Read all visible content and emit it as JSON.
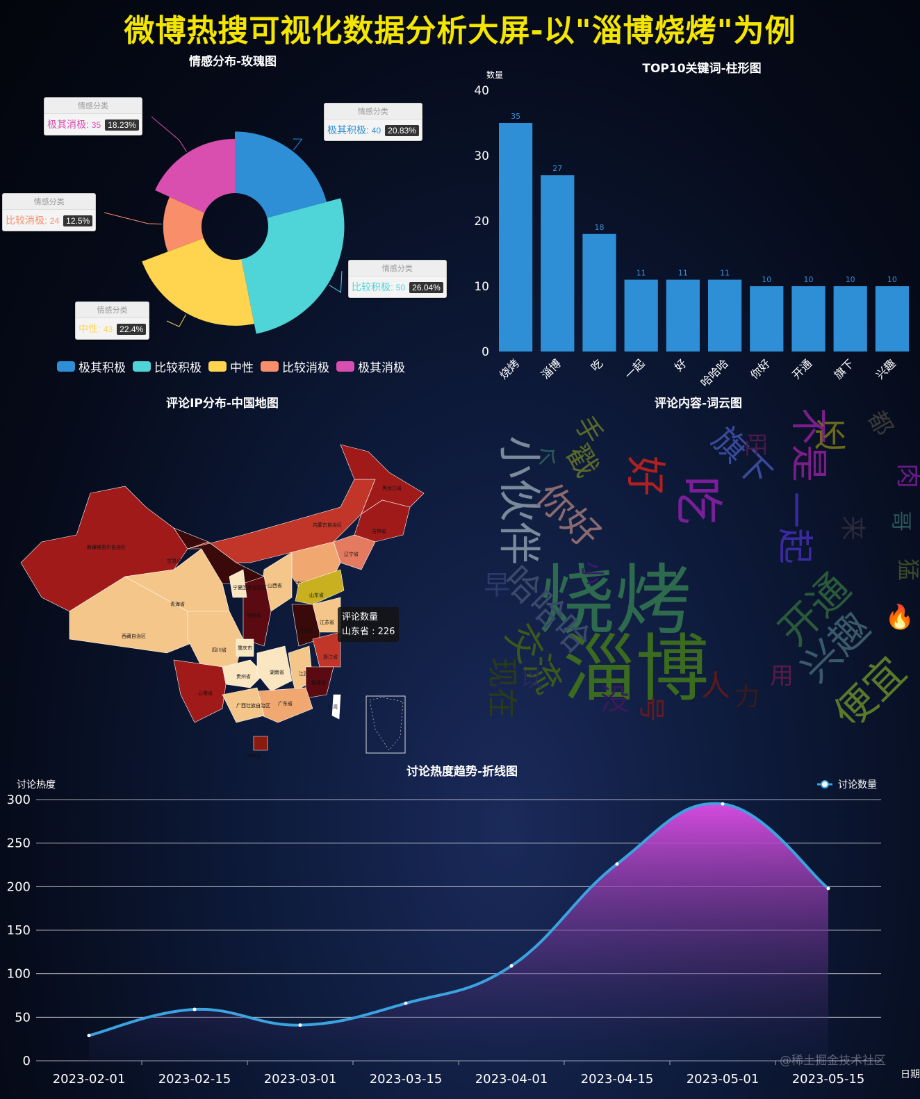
{
  "page": {
    "title": "微博热搜可视化数据分析大屏-以\"淄博烧烤\"为例",
    "watermark": "@稀土掘金技术社区"
  },
  "colors": {
    "title": "#f5e600",
    "bar": "#2e8fd6",
    "line": "#3aa3e0",
    "areaTop": "#d64be0",
    "areaBottom": "#1a2550"
  },
  "chart_data": [
    {
      "type": "pie",
      "title": "情感分布-玫瑰图",
      "label_header": "情感分类",
      "slices": [
        {
          "name": "极其积极",
          "value": 40,
          "percent": "20.83%",
          "color": "#2e8fd6"
        },
        {
          "name": "比较积极",
          "value": 50,
          "percent": "26.04%",
          "color": "#4fd4d8"
        },
        {
          "name": "中性",
          "value": 43,
          "percent": "22.4%",
          "color": "#ffd44f"
        },
        {
          "name": "比较消极",
          "value": 24,
          "percent": "12.5%",
          "color": "#f98e6a"
        },
        {
          "name": "极其消极",
          "value": 35,
          "percent": "18.23%",
          "color": "#d94fb0"
        }
      ],
      "legend_position": "bottom"
    },
    {
      "type": "bar",
      "title": "TOP10关键词-柱形图",
      "ylabel": "数量",
      "ylim": [
        0,
        40
      ],
      "yticks": [
        0,
        10,
        20,
        30,
        40
      ],
      "categories": [
        "烧烤",
        "淄博",
        "吃",
        "一起",
        "好",
        "哈哈哈",
        "你好",
        "开通",
        "旗下",
        "兴趣"
      ],
      "values": [
        35,
        27,
        18,
        11,
        11,
        11,
        10,
        10,
        10,
        10
      ]
    },
    {
      "type": "map",
      "title": "评论IP分布-中国地图",
      "tooltip": {
        "series": "评论数量",
        "item": "山东省 : 226"
      },
      "regions": [
        "新疆维吾尔自治区",
        "西藏自治区",
        "青海省",
        "甘肃省",
        "内蒙古自治区",
        "黑龙江省",
        "吉林省",
        "辽宁省",
        "北京市",
        "天津市",
        "河北省",
        "山西省",
        "山东省",
        "陕西省",
        "宁夏回族自治区",
        "四川省",
        "重庆市",
        "贵州省",
        "云南省",
        "湖南省",
        "江西省",
        "安徽省",
        "江苏省",
        "浙江省",
        "福建省",
        "广东省",
        "广西壮族自治区",
        "海南省",
        "台湾"
      ]
    },
    {
      "type": "wordcloud",
      "title": "评论内容-词云图",
      "words": [
        {
          "text": "烧烤",
          "color": "#2e6b4e"
        },
        {
          "text": "淄博",
          "color": "#3b6b1e"
        },
        {
          "text": "小伙伴",
          "color": "#7a8a9a"
        },
        {
          "text": "吃",
          "color": "#7a1e9a"
        },
        {
          "text": "好",
          "color": "#b02020"
        },
        {
          "text": "你好",
          "color": "#8a6a70"
        },
        {
          "text": "哈哈哈",
          "color": "#3a4a6a"
        },
        {
          "text": "一起",
          "color": "#3a2aa0"
        },
        {
          "text": "不是",
          "color": "#7a1e8a"
        },
        {
          "text": "旗下",
          "color": "#3a4a9a"
        },
        {
          "text": "开通",
          "color": "#2a5a3a"
        },
        {
          "text": "兴趣",
          "color": "#3a5a6a"
        },
        {
          "text": "便宜",
          "color": "#5a7a2a"
        },
        {
          "text": "交流",
          "color": "#3a5a1a"
        },
        {
          "text": "现在",
          "color": "#2a3a1a"
        },
        {
          "text": "戳",
          "color": "#5a6a2a"
        },
        {
          "text": "还",
          "color": "#6a6a1a"
        },
        {
          "text": "没",
          "color": "#3a1a5a"
        },
        {
          "text": "号",
          "color": "#6a1a1a"
        },
        {
          "text": "人",
          "color": "#5a1a1a"
        },
        {
          "text": "力",
          "color": "#3a1a1a"
        },
        {
          "text": "手",
          "color": "#5a6a2a"
        },
        {
          "text": "早",
          "color": "#2a3a6a"
        },
        {
          "text": "肉",
          "color": "#6a1a8a"
        },
        {
          "text": "哥",
          "color": "#2a5a5a"
        },
        {
          "text": "猛",
          "color": "#3a4a2a"
        },
        {
          "text": "来",
          "color": "#2a2a3a"
        },
        {
          "text": "都",
          "color": "#3a3a3a"
        },
        {
          "text": "旺",
          "color": "#4a1a4a"
        },
        {
          "text": "个",
          "color": "#2a5a5a"
        },
        {
          "text": "用",
          "color": "#5a1a4a"
        },
        {
          "text": "小",
          "color": "#3a1a6a"
        },
        {
          "text": "以",
          "color": "#2a2a5a"
        },
        {
          "text": "🔥",
          "color": "#ff7a1a"
        }
      ]
    },
    {
      "type": "area",
      "title": "讨论热度趋势-折线图",
      "ylabel": "讨论热度",
      "xlabel": "日期",
      "legend": "讨论数量",
      "legend_position": "top-right",
      "ylim": [
        0,
        300
      ],
      "yticks": [
        0,
        50,
        100,
        150,
        200,
        250,
        300
      ],
      "x": [
        "2023-02-01",
        "2023-02-15",
        "2023-03-01",
        "2023-03-15",
        "2023-04-01",
        "2023-04-15",
        "2023-05-01",
        "2023-05-15"
      ],
      "values": [
        29,
        59,
        41,
        66,
        109,
        226,
        295,
        198
      ]
    }
  ]
}
